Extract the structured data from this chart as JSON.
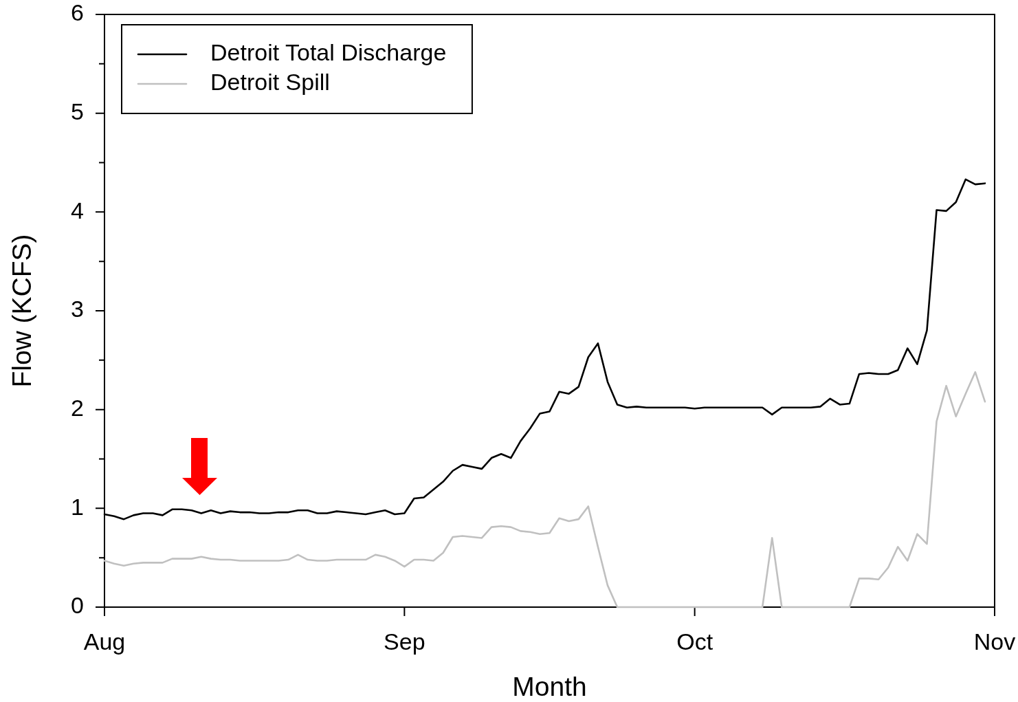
{
  "chart_data": {
    "type": "line",
    "xlabel": "Month",
    "ylabel": "Flow (KCFS)",
    "x": [
      "--08-01",
      "--08-02",
      "--08-03",
      "--08-04",
      "--08-05",
      "--08-06",
      "--08-07",
      "--08-08",
      "--08-09",
      "--08-10",
      "--08-11",
      "--08-12",
      "--08-13",
      "--08-14",
      "--08-15",
      "--08-16",
      "--08-17",
      "--08-18",
      "--08-19",
      "--08-20",
      "--08-21",
      "--08-22",
      "--08-23",
      "--08-24",
      "--08-25",
      "--08-26",
      "--08-27",
      "--08-28",
      "--08-29",
      "--08-30",
      "--08-31",
      "--09-01",
      "--09-02",
      "--09-03",
      "--09-04",
      "--09-05",
      "--09-06",
      "--09-07",
      "--09-08",
      "--09-09",
      "--09-10",
      "--09-11",
      "--09-12",
      "--09-13",
      "--09-14",
      "--09-15",
      "--09-16",
      "--09-17",
      "--09-18",
      "--09-19",
      "--09-20",
      "--09-21",
      "--09-22",
      "--09-23",
      "--09-24",
      "--09-25",
      "--09-26",
      "--09-27",
      "--09-28",
      "--09-29",
      "--09-30",
      "--10-01",
      "--10-02",
      "--10-03",
      "--10-04",
      "--10-05",
      "--10-06",
      "--10-07",
      "--10-08",
      "--10-09",
      "--10-10",
      "--10-11",
      "--10-12",
      "--10-13",
      "--10-14",
      "--10-15",
      "--10-16",
      "--10-17",
      "--10-18",
      "--10-19",
      "--10-20",
      "--10-21",
      "--10-22",
      "--10-23",
      "--10-24",
      "--10-25",
      "--10-26",
      "--10-27",
      "--10-28",
      "--10-29",
      "--10-30",
      "--10-31"
    ],
    "xlim": [
      "--08-01",
      "--11-01"
    ],
    "xticks": [
      {
        "value": "--08-01",
        "label": "Aug"
      },
      {
        "value": "--09-01",
        "label": "Sep"
      },
      {
        "value": "--10-01",
        "label": "Oct"
      },
      {
        "value": "--11-01",
        "label": "Nov"
      }
    ],
    "ylim": [
      0,
      6
    ],
    "yticks": [
      0,
      {
        "value": 0.5,
        "label": null
      },
      1,
      {
        "value": 1.5,
        "label": null
      },
      2,
      {
        "value": 2.5,
        "label": null
      },
      3,
      {
        "value": 3.5,
        "label": null
      },
      4,
      {
        "value": 4.5,
        "label": null
      },
      5,
      {
        "value": 5.5,
        "label": null
      },
      6
    ],
    "legend": "top left",
    "series": [
      {
        "name": "Detroit Total Discharge",
        "color": "#000000",
        "values": [
          0.94,
          0.92,
          0.89,
          0.93,
          0.95,
          0.95,
          0.93,
          0.99,
          0.99,
          0.98,
          0.95,
          0.98,
          0.95,
          0.97,
          0.96,
          0.96,
          0.95,
          0.95,
          0.96,
          0.96,
          0.98,
          0.98,
          0.95,
          0.95,
          0.97,
          0.96,
          0.95,
          0.94,
          0.96,
          0.98,
          0.94,
          0.95,
          1.1,
          1.11,
          1.19,
          1.27,
          1.38,
          1.44,
          1.42,
          1.4,
          1.51,
          1.55,
          1.51,
          1.68,
          1.81,
          1.96,
          1.98,
          2.18,
          2.16,
          2.23,
          2.53,
          2.67,
          2.28,
          2.05,
          2.02,
          2.03,
          2.02,
          2.02,
          2.02,
          2.02,
          2.02,
          2.01,
          2.02,
          2.02,
          2.02,
          2.02,
          2.02,
          2.02,
          2.02,
          1.95,
          2.02,
          2.02,
          2.02,
          2.02,
          2.03,
          2.11,
          2.05,
          2.06,
          2.36,
          2.37,
          2.36,
          2.36,
          2.4,
          2.62,
          2.46,
          2.8,
          4.02,
          4.01,
          4.1,
          4.33,
          4.28,
          4.29
        ]
      },
      {
        "name": "Detroit Spill",
        "color": "#c0c0c0",
        "values": [
          0.47,
          0.44,
          0.42,
          0.44,
          0.45,
          0.45,
          0.45,
          0.49,
          0.49,
          0.49,
          0.51,
          0.49,
          0.48,
          0.48,
          0.47,
          0.47,
          0.47,
          0.47,
          0.47,
          0.48,
          0.53,
          0.48,
          0.47,
          0.47,
          0.48,
          0.48,
          0.48,
          0.48,
          0.53,
          0.51,
          0.47,
          0.41,
          0.48,
          0.48,
          0.47,
          0.55,
          0.71,
          0.72,
          0.71,
          0.7,
          0.81,
          0.82,
          0.81,
          0.77,
          0.76,
          0.74,
          0.75,
          0.9,
          0.87,
          0.89,
          1.02,
          0.61,
          0.22,
          0,
          0,
          0,
          0,
          0,
          0,
          0,
          0,
          0,
          0,
          0,
          0,
          0,
          0,
          0,
          0,
          0.7,
          0,
          0,
          0,
          0,
          0,
          0,
          0,
          0,
          0.29,
          0.29,
          0.28,
          0.4,
          0.61,
          0.47,
          0.74,
          0.64,
          1.88,
          2.24,
          1.93,
          2.16,
          2.38,
          2.08
        ]
      }
    ]
  }
}
